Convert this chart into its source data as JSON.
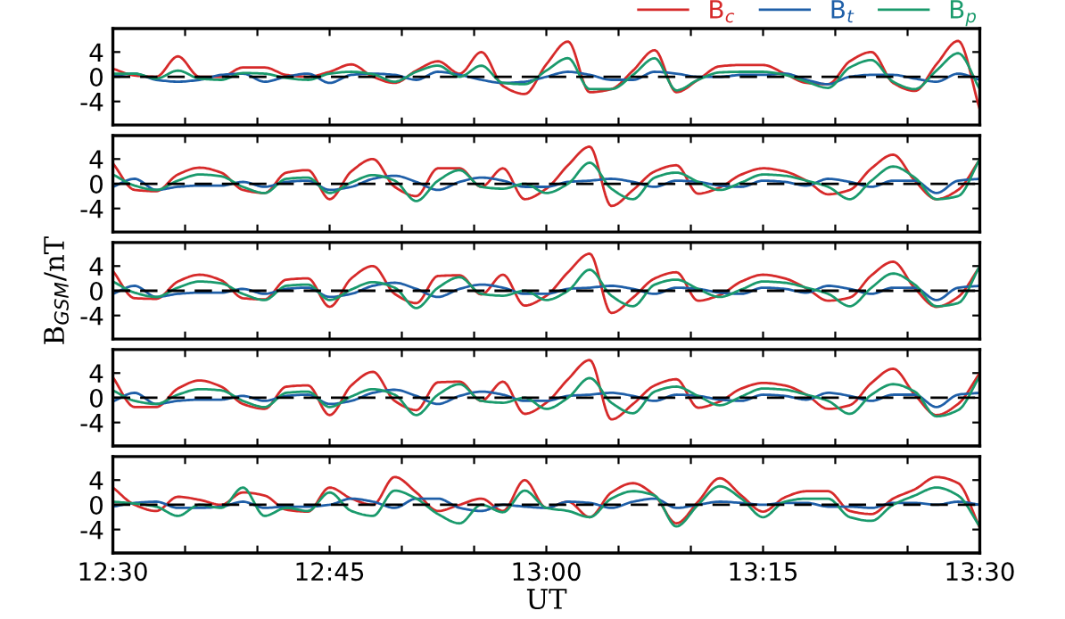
{
  "chart_data": [
    {
      "type": "line",
      "x": [
        12.5,
        12.525,
        12.55,
        12.575,
        12.6,
        12.625,
        12.65,
        12.675,
        12.7,
        12.725,
        12.75,
        12.775,
        12.8,
        12.825,
        12.85,
        12.875,
        12.9,
        12.925,
        12.95,
        12.975,
        13.0,
        13.025,
        13.05,
        13.075,
        13.1,
        13.125,
        13.15,
        13.175,
        13.2,
        13.225,
        13.25,
        13.275,
        13.3,
        13.325,
        13.35,
        13.375,
        13.4,
        13.425,
        13.45,
        13.475,
        13.5
      ],
      "series": [
        {
          "name": "B$_{c}$",
          "color": "#d62a2a",
          "values": [
            1.3,
            0.2,
            0,
            3.3,
            0,
            0,
            1.5,
            1.5,
            0.3,
            0,
            0.8,
            2,
            0,
            -1,
            1,
            2.5,
            0.5,
            4,
            -1.5,
            -2.8,
            2,
            5.7,
            -2.5,
            -2,
            1,
            4.3,
            -2.5,
            -0.5,
            1.7,
            1.9,
            1.9,
            0.5,
            -1,
            -1.2,
            2.5,
            4,
            -1,
            -2.3,
            2,
            5.8,
            -5.3
          ]
        },
        {
          "name": "B$_{t}$",
          "color": "#1f5fa8",
          "values": [
            0.2,
            0.5,
            -0.5,
            -0.8,
            -0.5,
            0.3,
            0.5,
            -0.8,
            0,
            0.5,
            -1,
            0.3,
            0.5,
            0.3,
            -0.5,
            0.8,
            0.3,
            -0.5,
            -1,
            -0.8,
            0,
            0.8,
            0.3,
            -0.5,
            -0.5,
            0.8,
            0.5,
            0,
            0,
            0.3,
            0.3,
            0.5,
            -0.5,
            -1.2,
            0,
            0.3,
            0.3,
            -0.3,
            -0.8,
            0.5,
            -0.5
          ]
        },
        {
          "name": "B$_{p}$",
          "color": "#1a9a6c",
          "values": [
            0.5,
            0.5,
            -0.3,
            1,
            -0.3,
            -0.5,
            0.6,
            0.5,
            -0.2,
            -0.5,
            0.5,
            0.8,
            0.4,
            -0.8,
            0.8,
            1.8,
            0,
            1.8,
            -1,
            -1.2,
            1,
            3,
            -2,
            -2,
            0.3,
            3,
            -2.2,
            -0.5,
            0.7,
            0.8,
            0.8,
            0.3,
            -0.8,
            -1.8,
            1.5,
            2.7,
            -0.8,
            -2,
            1,
            3.8,
            -2
          ]
        }
      ],
      "xlim": [
        12.5,
        13.5
      ],
      "xticks": [
        {
          "value": 12.5,
          "label": null
        },
        {
          "value": 12.5833,
          "label": null
        },
        {
          "value": 12.6667,
          "label": null
        },
        {
          "value": 12.75,
          "label": null
        },
        {
          "value": 12.8333,
          "label": null
        },
        {
          "value": 12.9167,
          "label": null
        },
        {
          "value": 13.0,
          "label": null
        },
        {
          "value": 13.0833,
          "label": null
        },
        {
          "value": 13.1667,
          "label": null
        },
        {
          "value": 13.25,
          "label": null
        },
        {
          "value": 13.3333,
          "label": null
        },
        {
          "value": 13.4167,
          "label": null
        },
        {
          "value": 13.5,
          "label": null
        }
      ],
      "ylim": [
        -7.8,
        7.8
      ],
      "yticks": [
        -4,
        0,
        4
      ],
      "tick_labels": "y",
      "grid": false,
      "legend": "top right",
      "marker": "none",
      "line_style": "solid",
      "ref_lines": [
        {
          "axis": "y",
          "value": 0,
          "color": "#000000",
          "line_style": "dashed"
        }
      ]
    },
    {
      "type": "line",
      "x": [
        12.5,
        12.525,
        12.55,
        12.575,
        12.6,
        12.625,
        12.65,
        12.675,
        12.7,
        12.725,
        12.75,
        12.775,
        12.8,
        12.825,
        12.85,
        12.875,
        12.9,
        12.925,
        12.95,
        12.975,
        13.0,
        13.025,
        13.05,
        13.075,
        13.1,
        13.125,
        13.15,
        13.175,
        13.2,
        13.225,
        13.25,
        13.275,
        13.3,
        13.325,
        13.35,
        13.375,
        13.4,
        13.425,
        13.45,
        13.475,
        13.5
      ],
      "series": [
        {
          "color": "#d62a2a",
          "values": [
            3.3,
            -1,
            -1.2,
            1.5,
            2.6,
            1.8,
            -1,
            -1.5,
            1.8,
            2.2,
            -2.5,
            2,
            4,
            -0.5,
            -2,
            2.5,
            2.5,
            -0.5,
            2.5,
            -2.5,
            -0.8,
            3,
            6,
            -3.6,
            -1,
            2,
            3,
            -1.6,
            -0.6,
            1.5,
            2.5,
            2,
            0.5,
            -1.7,
            -1,
            2.5,
            4.7,
            0.5,
            -2.5,
            -1,
            3.9
          ]
        },
        {
          "color": "#1f5fa8",
          "values": [
            -0.5,
            0.8,
            -1,
            -0.5,
            -0.3,
            -0.3,
            0.3,
            -0.5,
            0.3,
            0.5,
            -1,
            -0.5,
            0.8,
            1.3,
            0.3,
            -1,
            0.3,
            1,
            0.5,
            -0.5,
            -0.5,
            0.3,
            0.5,
            0.8,
            0.3,
            -0.5,
            0.5,
            0.3,
            -0.3,
            -0.5,
            0.5,
            0.3,
            -0.3,
            0.8,
            0.3,
            -0.5,
            0.5,
            0.5,
            -1.5,
            0.5,
            0.8
          ]
        },
        {
          "color": "#1a9a6c",
          "values": [
            1.5,
            -0.3,
            -1,
            0.5,
            1.5,
            1.2,
            -0.5,
            -1.5,
            0.8,
            1,
            -1.5,
            0.2,
            1.4,
            0.5,
            -2.8,
            0.5,
            2.2,
            -0.5,
            -0.8,
            0,
            -1.5,
            0,
            3.4,
            -0.8,
            -2.5,
            1,
            1.8,
            0.3,
            -1,
            0.2,
            1.5,
            1.3,
            0.5,
            -0.5,
            -2.5,
            0.5,
            2.8,
            1,
            -2.5,
            -2,
            4
          ]
        }
      ],
      "xlim": [
        12.5,
        13.5
      ],
      "xticks": [
        {
          "value": 12.5,
          "label": null
        },
        {
          "value": 12.5833,
          "label": null
        },
        {
          "value": 12.6667,
          "label": null
        },
        {
          "value": 12.75,
          "label": null
        },
        {
          "value": 12.8333,
          "label": null
        },
        {
          "value": 12.9167,
          "label": null
        },
        {
          "value": 13.0,
          "label": null
        },
        {
          "value": 13.0833,
          "label": null
        },
        {
          "value": 13.1667,
          "label": null
        },
        {
          "value": 13.25,
          "label": null
        },
        {
          "value": 13.3333,
          "label": null
        },
        {
          "value": 13.4167,
          "label": null
        },
        {
          "value": 13.5,
          "label": null
        }
      ],
      "ylim": [
        -7.8,
        7.8
      ],
      "yticks": [
        -4,
        0,
        4
      ],
      "tick_labels": "y",
      "grid": false,
      "marker": "none",
      "line_style": "solid",
      "ref_lines": [
        {
          "axis": "y",
          "value": 0,
          "color": "#000000",
          "line_style": "dashed"
        }
      ]
    },
    {
      "type": "line",
      "ylabel": "B$_{GSM}$/nT",
      "x": [
        12.5,
        12.525,
        12.55,
        12.575,
        12.6,
        12.625,
        12.65,
        12.675,
        12.7,
        12.725,
        12.75,
        12.775,
        12.8,
        12.825,
        12.85,
        12.875,
        12.9,
        12.925,
        12.95,
        12.975,
        13.0,
        13.025,
        13.05,
        13.075,
        13.1,
        13.125,
        13.15,
        13.175,
        13.2,
        13.225,
        13.25,
        13.275,
        13.3,
        13.325,
        13.35,
        13.375,
        13.4,
        13.425,
        13.45,
        13.475,
        13.5
      ],
      "series": [
        {
          "color": "#d62a2a",
          "values": [
            3.2,
            -1.2,
            -1.3,
            1.5,
            2.6,
            1.7,
            -1.2,
            -1.4,
            1.8,
            2,
            -2.6,
            2,
            4,
            -0.5,
            -2,
            2.4,
            2.5,
            -0.6,
            2.6,
            -2.4,
            -0.8,
            3,
            6,
            -3.6,
            -1.1,
            2,
            3,
            -1.6,
            -0.7,
            1.5,
            2.6,
            2,
            0.4,
            -1.6,
            -1.1,
            2.5,
            4.7,
            0.4,
            -2.6,
            -1,
            3.9
          ]
        },
        {
          "color": "#1f5fa8",
          "values": [
            -0.5,
            0.8,
            -1,
            -0.5,
            -0.3,
            -0.3,
            0.3,
            -0.5,
            0.3,
            0.5,
            -1,
            -0.5,
            0.8,
            1.3,
            0.3,
            -1,
            0.3,
            1,
            0.5,
            -0.5,
            -0.5,
            0.3,
            0.5,
            0.8,
            0.3,
            -0.5,
            0.5,
            0.3,
            -0.3,
            -0.5,
            0.5,
            0.3,
            -0.3,
            0.8,
            0.3,
            -0.5,
            0.5,
            0.5,
            -1.5,
            0.5,
            0.8
          ]
        },
        {
          "color": "#1a9a6c",
          "values": [
            1.5,
            -0.3,
            -1,
            0.5,
            1.5,
            1.2,
            -0.5,
            -1.5,
            0.8,
            1,
            -1.5,
            0.2,
            1.4,
            0.5,
            -2.8,
            0.5,
            2.2,
            -0.5,
            -0.8,
            0,
            -1.5,
            0,
            3.4,
            -0.8,
            -2.5,
            1,
            1.8,
            0.3,
            -1,
            0.2,
            1.5,
            1.3,
            0.5,
            -0.5,
            -2.5,
            0.5,
            2.8,
            1,
            -2.5,
            -2,
            4
          ]
        }
      ],
      "xlim": [
        12.5,
        13.5
      ],
      "xticks": [
        {
          "value": 12.5,
          "label": null
        },
        {
          "value": 12.5833,
          "label": null
        },
        {
          "value": 12.6667,
          "label": null
        },
        {
          "value": 12.75,
          "label": null
        },
        {
          "value": 12.8333,
          "label": null
        },
        {
          "value": 12.9167,
          "label": null
        },
        {
          "value": 13.0,
          "label": null
        },
        {
          "value": 13.0833,
          "label": null
        },
        {
          "value": 13.1667,
          "label": null
        },
        {
          "value": 13.25,
          "label": null
        },
        {
          "value": 13.3333,
          "label": null
        },
        {
          "value": 13.4167,
          "label": null
        },
        {
          "value": 13.5,
          "label": null
        }
      ],
      "ylim": [
        -7.8,
        7.8
      ],
      "yticks": [
        -4,
        0,
        4
      ],
      "tick_labels": "y",
      "grid": false,
      "marker": "none",
      "line_style": "solid",
      "ref_lines": [
        {
          "axis": "y",
          "value": 0,
          "color": "#000000",
          "line_style": "dashed"
        }
      ]
    },
    {
      "type": "line",
      "x": [
        12.5,
        12.525,
        12.55,
        12.575,
        12.6,
        12.625,
        12.65,
        12.675,
        12.7,
        12.725,
        12.75,
        12.775,
        12.8,
        12.825,
        12.85,
        12.875,
        12.9,
        12.925,
        12.95,
        12.975,
        13.0,
        13.025,
        13.05,
        13.075,
        13.1,
        13.125,
        13.15,
        13.175,
        13.2,
        13.225,
        13.25,
        13.275,
        13.3,
        13.325,
        13.35,
        13.375,
        13.4,
        13.425,
        13.45,
        13.475,
        13.5
      ],
      "series": [
        {
          "color": "#d62a2a",
          "values": [
            3.3,
            -1.5,
            -1.5,
            1.5,
            2.8,
            1.8,
            -1,
            -1.8,
            1.8,
            2,
            -2.8,
            2,
            4.2,
            -0.5,
            -2,
            2.5,
            2.6,
            -0.5,
            2.6,
            -2.6,
            -0.8,
            3,
            6.1,
            -3.5,
            -1,
            2,
            3,
            -1.6,
            -0.6,
            1.5,
            2.4,
            2,
            0.5,
            -1.8,
            -1.2,
            2.4,
            4.7,
            0.5,
            -2.8,
            -1,
            4
          ]
        },
        {
          "color": "#1f5fa8",
          "values": [
            -0.6,
            0.8,
            -1,
            -0.5,
            -0.3,
            -0.3,
            0.3,
            -0.5,
            0.3,
            0.5,
            -1,
            -0.5,
            0.8,
            1.3,
            0.3,
            -1,
            0.3,
            1,
            0.5,
            -0.5,
            -0.5,
            0.3,
            0.5,
            0.8,
            0.3,
            -0.5,
            0.5,
            0.3,
            -0.3,
            -0.5,
            0.5,
            0.3,
            -0.3,
            0.8,
            0.3,
            -0.5,
            0.5,
            0.5,
            -1.5,
            0.5,
            0.8
          ]
        },
        {
          "color": "#1a9a6c",
          "values": [
            1.2,
            -0.5,
            -1,
            0.5,
            1.4,
            1.2,
            -0.5,
            -1.5,
            0.8,
            1,
            -1.5,
            0.2,
            1.4,
            0.5,
            -2.8,
            0.5,
            2.2,
            -0.5,
            -0.8,
            0,
            -1.8,
            0,
            3.2,
            -0.8,
            -2.5,
            1,
            1.8,
            0.3,
            -1.2,
            0.2,
            1.5,
            1.3,
            0.5,
            -0.5,
            -2.6,
            0.5,
            2.2,
            1,
            -3,
            -2,
            3.5
          ]
        }
      ],
      "xlim": [
        12.5,
        13.5
      ],
      "xticks": [
        {
          "value": 12.5,
          "label": null
        },
        {
          "value": 12.5833,
          "label": null
        },
        {
          "value": 12.6667,
          "label": null
        },
        {
          "value": 12.75,
          "label": null
        },
        {
          "value": 12.8333,
          "label": null
        },
        {
          "value": 12.9167,
          "label": null
        },
        {
          "value": 13.0,
          "label": null
        },
        {
          "value": 13.0833,
          "label": null
        },
        {
          "value": 13.1667,
          "label": null
        },
        {
          "value": 13.25,
          "label": null
        },
        {
          "value": 13.3333,
          "label": null
        },
        {
          "value": 13.4167,
          "label": null
        },
        {
          "value": 13.5,
          "label": null
        }
      ],
      "ylim": [
        -7.8,
        7.8
      ],
      "yticks": [
        -4,
        0,
        4
      ],
      "tick_labels": "y",
      "grid": false,
      "marker": "none",
      "line_style": "solid",
      "ref_lines": [
        {
          "axis": "y",
          "value": 0,
          "color": "#000000",
          "line_style": "dashed"
        }
      ]
    },
    {
      "type": "line",
      "xlabel": "UT",
      "x": [
        12.5,
        12.525,
        12.55,
        12.575,
        12.6,
        12.625,
        12.65,
        12.675,
        12.7,
        12.725,
        12.75,
        12.775,
        12.8,
        12.825,
        12.85,
        12.875,
        12.9,
        12.925,
        12.95,
        12.975,
        13.0,
        13.025,
        13.05,
        13.075,
        13.1,
        13.125,
        13.15,
        13.175,
        13.2,
        13.225,
        13.25,
        13.275,
        13.3,
        13.325,
        13.35,
        13.375,
        13.4,
        13.425,
        13.45,
        13.475,
        13.5
      ],
      "series": [
        {
          "color": "#d62a2a",
          "values": [
            2.8,
            0,
            -1,
            1.3,
            0.8,
            0,
            2,
            1.5,
            -0.8,
            -1.1,
            2.8,
            1,
            0,
            4.5,
            2,
            -1,
            0,
            1,
            -1,
            4,
            -0.5,
            0.5,
            -2,
            2,
            3.5,
            1.5,
            -3,
            0.5,
            4.3,
            1.5,
            -1.1,
            1.2,
            2.2,
            2.2,
            -1,
            -1.5,
            1,
            2.5,
            4.5,
            3.5,
            -3.7
          ]
        },
        {
          "color": "#1f5fa8",
          "values": [
            -0.3,
            0.3,
            0.5,
            -0.5,
            -0.5,
            -0.3,
            0.5,
            -0.5,
            -0.3,
            -0.3,
            0,
            1,
            0.5,
            -0.5,
            1,
            1,
            -0.5,
            -1,
            0,
            -0.3,
            -0.5,
            0.5,
            0.3,
            -0.5,
            0.5,
            1,
            -0.5,
            0,
            0.5,
            0.3,
            0,
            0.3,
            0.3,
            -0.3,
            -0.3,
            -0.5,
            0.3,
            0.3,
            0,
            0.5,
            0
          ]
        },
        {
          "color": "#1a9a6c",
          "values": [
            0.5,
            0.2,
            -0.3,
            -1.8,
            0,
            -0.5,
            2.8,
            -1.8,
            -0.5,
            -1,
            2,
            -1,
            -1.8,
            2.3,
            1,
            -1.5,
            -3,
            0,
            -1.2,
            2.3,
            -0.5,
            -1,
            -2,
            1,
            2.2,
            1.5,
            -3.5,
            0,
            3,
            1,
            -2,
            0.5,
            1,
            1,
            -2,
            -2.6,
            0,
            1.5,
            2.8,
            1.5,
            -3.5
          ]
        }
      ],
      "xlim": [
        12.5,
        13.5
      ],
      "xticks": [
        {
          "value": 12.5,
          "label": "12:30"
        },
        {
          "value": 12.5833,
          "label": null
        },
        {
          "value": 12.6667,
          "label": null
        },
        {
          "value": 12.75,
          "label": "12:45"
        },
        {
          "value": 12.8333,
          "label": null
        },
        {
          "value": 12.9167,
          "label": null
        },
        {
          "value": 13.0,
          "label": "13:00"
        },
        {
          "value": 13.0833,
          "label": null
        },
        {
          "value": 13.1667,
          "label": null
        },
        {
          "value": 13.25,
          "label": "13:15"
        },
        {
          "value": 13.3333,
          "label": null
        },
        {
          "value": 13.4167,
          "label": null
        },
        {
          "value": 13.5,
          "label": "13:30"
        }
      ],
      "ylim": [
        -7.8,
        7.8
      ],
      "yticks": [
        -4,
        0,
        4
      ],
      "grid": false,
      "marker": "none",
      "line_style": "solid",
      "ref_lines": [
        {
          "axis": "y",
          "value": 0,
          "color": "#000000",
          "line_style": "dashed"
        }
      ]
    }
  ]
}
